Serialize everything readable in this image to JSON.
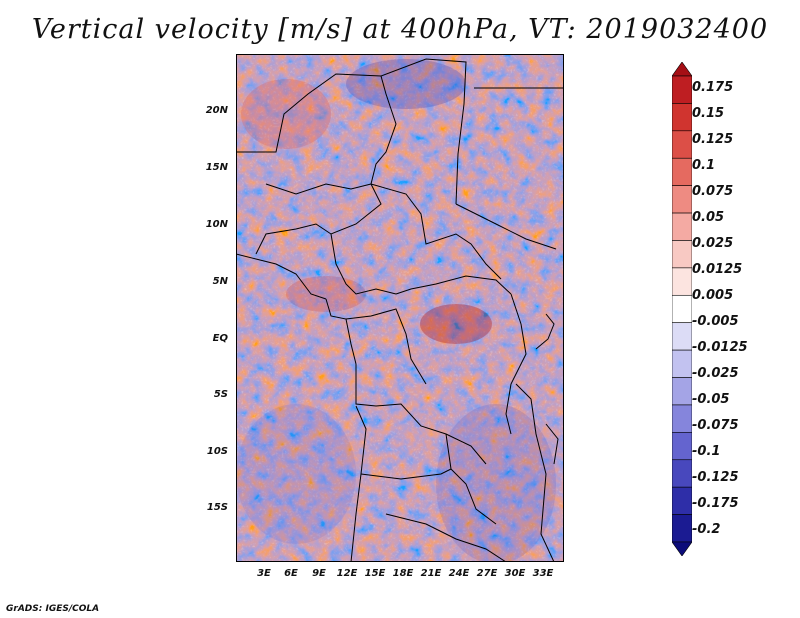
{
  "title": "Vertical velocity [m/s] at 400hPa, VT: 2019032400",
  "credit": "GrADS: IGES/COLA",
  "map": {
    "lat_labels": [
      "20N",
      "15N",
      "10N",
      "5N",
      "EQ",
      "5S",
      "10S",
      "15S"
    ],
    "lon_labels": [
      "3E",
      "6E",
      "9E",
      "12E",
      "15E",
      "18E",
      "21E",
      "24E",
      "27E",
      "30E",
      "33E"
    ]
  },
  "colorbar": {
    "labels": [
      "0.175",
      "0.15",
      "0.125",
      "0.1",
      "0.075",
      "0.05",
      "0.025",
      "0.0125",
      "0.005",
      "-0.005",
      "-0.0125",
      "-0.025",
      "-0.05",
      "-0.075",
      "-0.1",
      "-0.125",
      "-0.175",
      "-0.2"
    ],
    "colors": [
      "#a50f15",
      "#be1e22",
      "#d0342f",
      "#dc4f47",
      "#e56a60",
      "#ee8b82",
      "#f4aaa3",
      "#f8c9c3",
      "#fce4e0",
      "#ffffff",
      "#dcdcf6",
      "#c2c2f0",
      "#a4a4e6",
      "#8585dc",
      "#6464cf",
      "#4848bd",
      "#2e2ea8",
      "#1b1b92",
      "#0c0c7a"
    ]
  }
}
